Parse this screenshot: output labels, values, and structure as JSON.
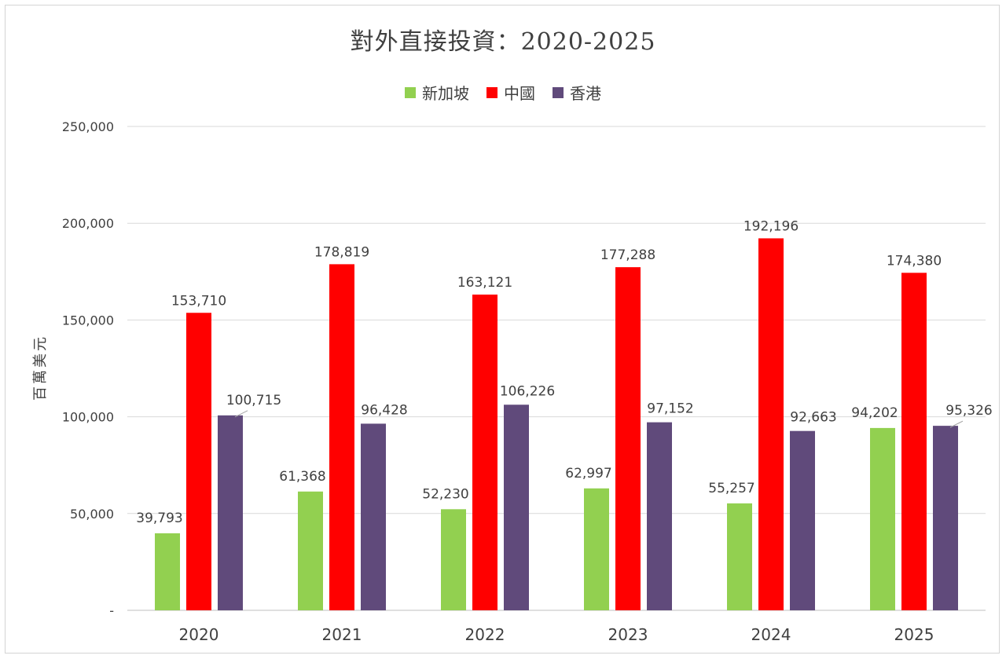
{
  "chart_data": {
    "type": "bar",
    "title": "對外直接投資：2020-2025",
    "xlabel": "",
    "ylabel": "百萬美元",
    "categories": [
      "2020",
      "2021",
      "2022",
      "2023",
      "2024",
      "2025"
    ],
    "series": [
      {
        "name": "新加坡",
        "color": "#92d050",
        "values": [
          39793,
          61368,
          52230,
          62997,
          55257,
          94202
        ]
      },
      {
        "name": "中國",
        "color": "#ff0000",
        "values": [
          153710,
          178819,
          163121,
          177288,
          192196,
          174380
        ]
      },
      {
        "name": "香港",
        "color": "#604a7b",
        "values": [
          100715,
          96428,
          106226,
          97152,
          92663,
          95326
        ]
      }
    ],
    "data_labels": {
      "新加坡": [
        "39,793",
        "61,368",
        "52,230",
        "62,997",
        "55,257",
        "94,202"
      ],
      "中國": [
        "153,710",
        "178,819",
        "163,121",
        "177,288",
        "192,196",
        "174,380"
      ],
      "香港": [
        "100,715",
        "96,428",
        "106,226",
        "97,152",
        "92,663",
        "95,326"
      ]
    },
    "ylim": [
      0,
      250000
    ],
    "yticks": [
      0,
      50000,
      100000,
      150000,
      200000,
      250000
    ],
    "ytick_labels": [
      "-",
      "50,000",
      "100,000",
      "150,000",
      "200,000",
      "250,000"
    ],
    "grid": true,
    "legend_position": "top"
  }
}
